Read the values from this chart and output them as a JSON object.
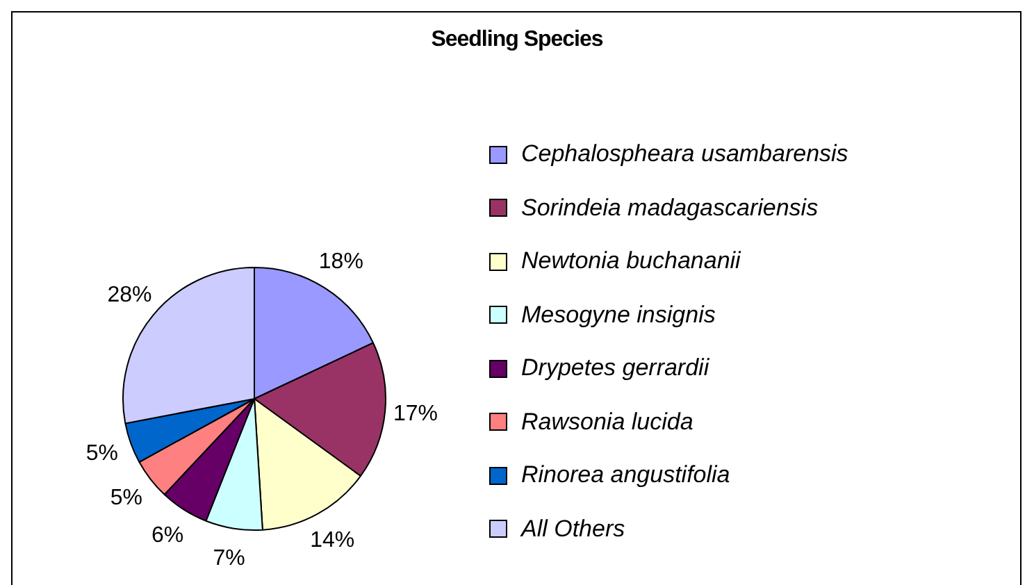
{
  "chart_data": {
    "type": "pie",
    "title": "Seedling Species",
    "categories": [
      "Cephalospheara usambarensis",
      "Sorindeia madagascariensis",
      "Newtonia buchananii",
      "Mesogyne insignis",
      "Drypetes gerrardii",
      "Rawsonia lucida",
      "Rinorea angustifolia",
      "All Others"
    ],
    "values": [
      18,
      17,
      14,
      7,
      6,
      5,
      5,
      28
    ],
    "value_labels": [
      "18%",
      "17%",
      "14%",
      "7%",
      "6%",
      "5%",
      "5%",
      "28%"
    ],
    "colors": [
      "#9999ff",
      "#993366",
      "#ffffcc",
      "#ccffff",
      "#660066",
      "#ff8080",
      "#0066cc",
      "#ccccff"
    ],
    "legend": "right"
  }
}
